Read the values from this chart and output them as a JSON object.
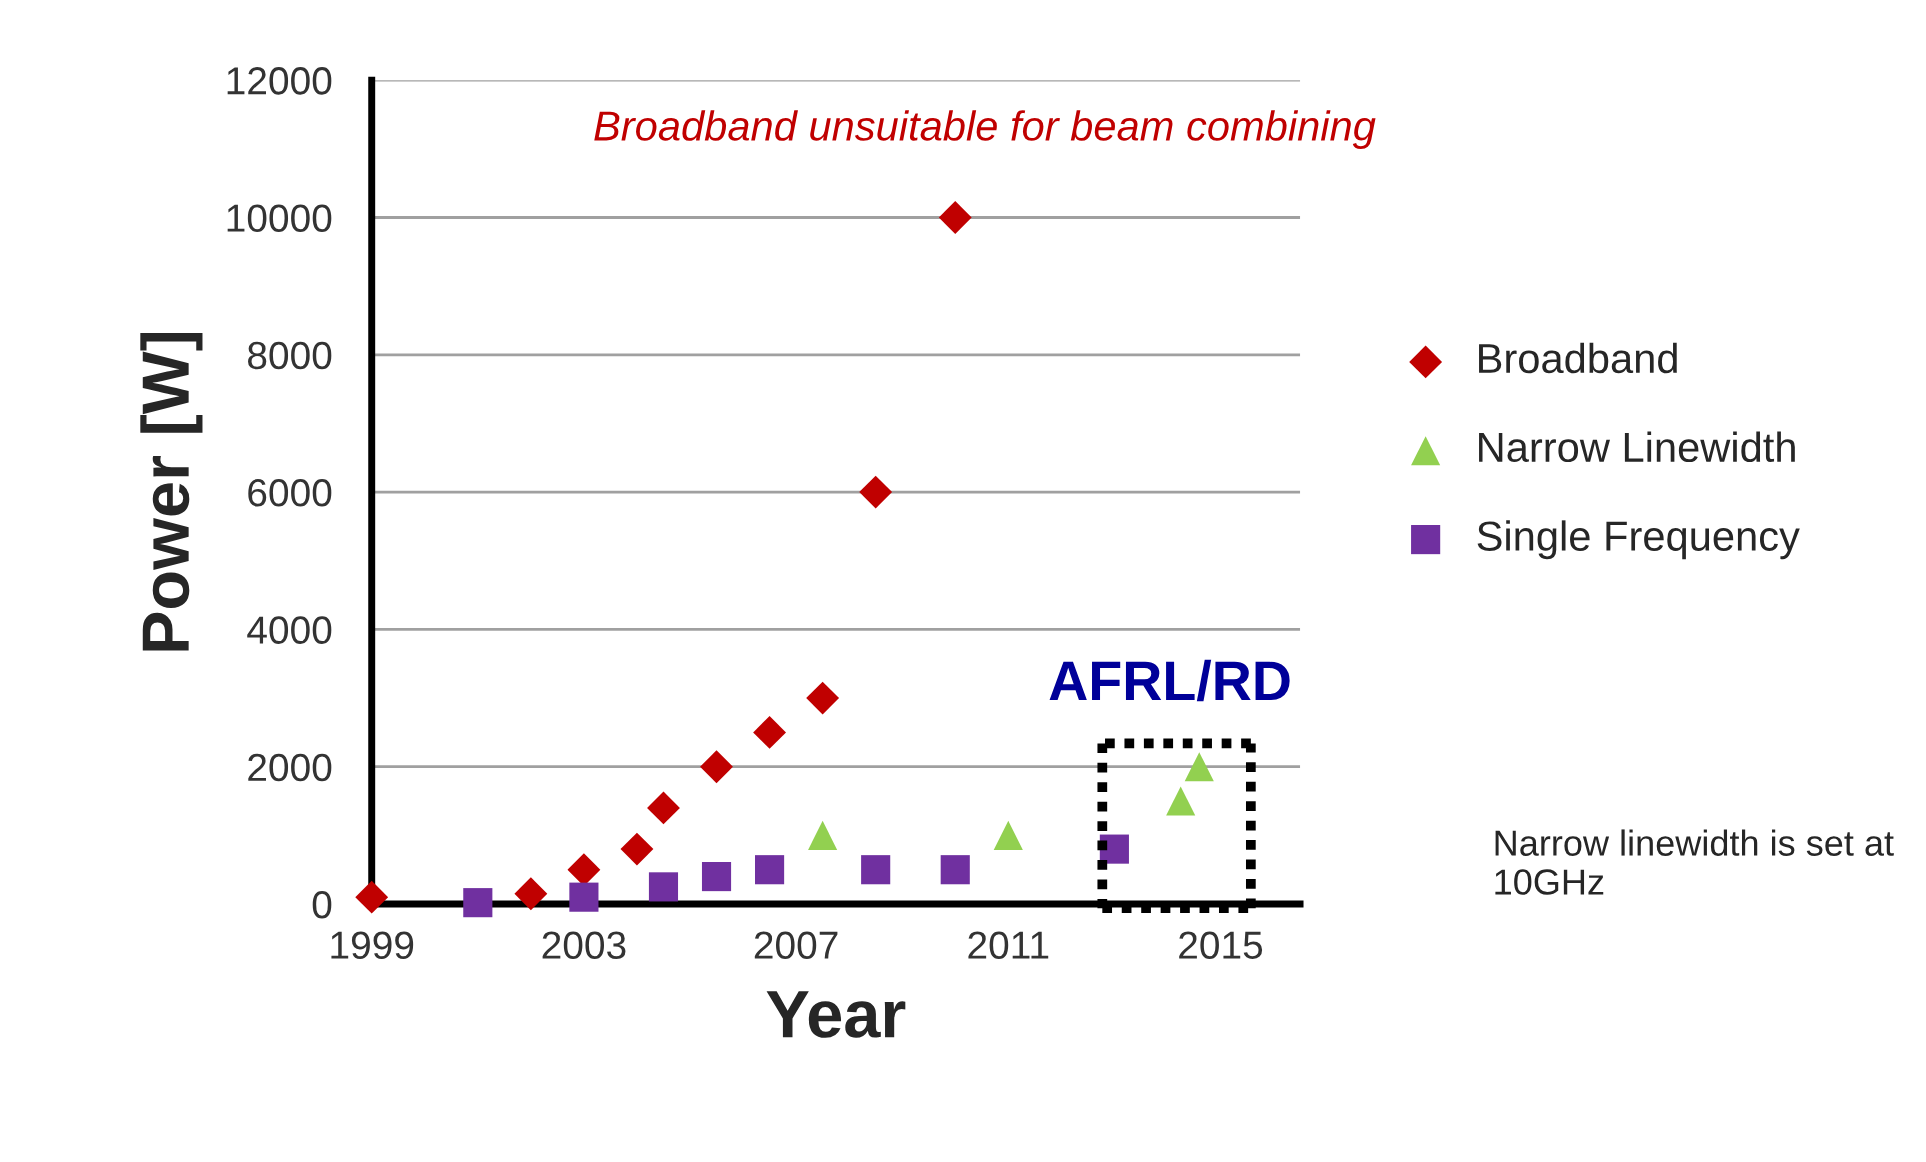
{
  "chart_data": {
    "type": "scatter",
    "xlabel": "Year",
    "ylabel": "Power [W]",
    "xlim": [
      1999,
      2016.5
    ],
    "xticks": [
      1999,
      2003,
      2007,
      2011,
      2015
    ],
    "ylim": [
      0,
      12000
    ],
    "yticks": [
      0,
      2000,
      4000,
      6000,
      8000,
      10000,
      12000
    ],
    "grid": "y",
    "legend": "right",
    "series": [
      {
        "name": "Broadband",
        "color": "#c00000",
        "marker": "diamond",
        "x": [
          1999,
          2002,
          2003,
          2004,
          2004.5,
          2005.5,
          2006.5,
          2007.5,
          2008.5,
          2010
        ],
        "values": [
          100,
          150,
          500,
          800,
          1400,
          2000,
          2500,
          3000,
          6000,
          10000
        ]
      },
      {
        "name": "Narrow Linewidth",
        "color": "#92d050",
        "marker": "triangle",
        "x": [
          2007.5,
          2011,
          2014.25,
          2014.6
        ],
        "values": [
          1000,
          1000,
          1500,
          2000
        ]
      },
      {
        "name": "Single Frequency",
        "color": "#7030a0",
        "marker": "square",
        "x": [
          2001,
          2003,
          2004.5,
          2005.5,
          2006.5,
          2008.5,
          2010,
          2013
        ],
        "values": [
          20,
          100,
          250,
          400,
          500,
          500,
          500,
          800
        ]
      }
    ],
    "annotations": [
      "Broadband unsuitable for beam combining",
      "AFRL/RD",
      "Narrow linewidth is set at 10GHz"
    ]
  }
}
